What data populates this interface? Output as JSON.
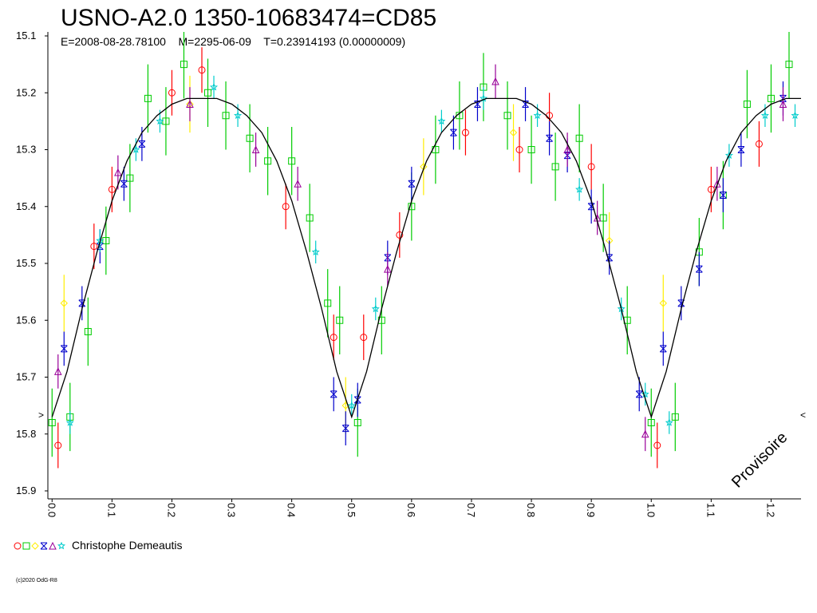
{
  "chart_data": {
    "type": "scatter",
    "title": "USNO-A2.0 1350-10683474=CD85",
    "subtitle": "E=2008-08-28.78100    M=2295-06-09    T=0.23914193 (0.00000009)",
    "annotation": "Provisoire",
    "min_marker_left": ">",
    "min_marker_right": "<",
    "copyright": "(c)2020 OdG-R8",
    "observer": "Christophe Demeautis",
    "xlim": [
      -0.007,
      1.25
    ],
    "ylim": [
      15.1,
      15.9
    ],
    "y_inverted": true,
    "xticks": [
      {
        "value": 0,
        "label": "0.0"
      },
      0.1,
      0.2,
      0.3,
      0.4,
      0.5,
      0.6,
      0.7,
      0.8,
      0.9,
      {
        "value": 1,
        "label": "1.0"
      },
      1.1,
      1.2
    ],
    "yticks": [
      15.1,
      15.2,
      15.3,
      15.4,
      15.5,
      15.6,
      15.7,
      15.8,
      15.9
    ],
    "line": {
      "color": "#000000",
      "x": [
        0,
        0.025,
        0.05,
        0.075,
        0.1,
        0.125,
        0.15,
        0.175,
        0.2,
        0.225,
        0.25,
        0.275,
        0.3,
        0.325,
        0.35,
        0.375,
        0.4,
        0.425,
        0.45,
        0.475,
        0.5,
        0.525,
        0.55,
        0.575,
        0.6,
        0.625,
        0.65,
        0.675,
        0.7,
        0.725,
        0.75,
        0.775,
        0.8,
        0.825,
        0.85,
        0.875,
        0.9,
        0.925,
        0.95,
        0.975,
        1,
        1.025,
        1.05,
        1.075,
        1.1,
        1.125,
        1.15,
        1.175,
        1.2,
        1.225,
        1.25
      ],
      "values": [
        15.77,
        15.69,
        15.58,
        15.48,
        15.39,
        15.32,
        15.27,
        15.24,
        15.22,
        15.21,
        15.21,
        15.21,
        15.22,
        15.24,
        15.27,
        15.32,
        15.39,
        15.48,
        15.58,
        15.69,
        15.77,
        15.69,
        15.58,
        15.48,
        15.39,
        15.32,
        15.27,
        15.24,
        15.22,
        15.21,
        15.21,
        15.21,
        15.22,
        15.24,
        15.27,
        15.32,
        15.39,
        15.48,
        15.58,
        15.69,
        15.77,
        15.69,
        15.58,
        15.48,
        15.39,
        15.32,
        15.27,
        15.24,
        15.22,
        15.21,
        15.21
      ]
    },
    "series": [
      {
        "color": "#ff0000",
        "marker": "circle",
        "error": 0.04,
        "x": [
          0.01,
          0.07,
          0.1,
          0.2,
          0.25,
          0.39,
          0.47,
          0.52,
          0.58,
          0.69,
          0.78,
          0.83,
          0.9,
          1.01,
          1.1,
          1.18
        ],
        "values": [
          15.82,
          15.47,
          15.37,
          15.2,
          15.16,
          15.4,
          15.63,
          15.63,
          15.45,
          15.27,
          15.3,
          15.24,
          15.33,
          15.82,
          15.37,
          15.29
        ]
      },
      {
        "color": "#00cc00",
        "marker": "square",
        "error": 0.06,
        "x": [
          0.0,
          0.03,
          0.06,
          0.09,
          0.13,
          0.16,
          0.19,
          0.22,
          0.26,
          0.29,
          0.33,
          0.36,
          0.4,
          0.43,
          0.46,
          0.48,
          0.51,
          0.55,
          0.6,
          0.64,
          0.68,
          0.72,
          0.76,
          0.8,
          0.84,
          0.88,
          0.92,
          0.96,
          1.0,
          1.04,
          1.08,
          1.12,
          1.16,
          1.2,
          1.23
        ],
        "values": [
          15.78,
          15.77,
          15.62,
          15.46,
          15.35,
          15.21,
          15.25,
          15.15,
          15.2,
          15.24,
          15.28,
          15.32,
          15.32,
          15.42,
          15.57,
          15.6,
          15.78,
          15.6,
          15.4,
          15.3,
          15.24,
          15.19,
          15.24,
          15.3,
          15.33,
          15.28,
          15.42,
          15.6,
          15.78,
          15.77,
          15.48,
          15.38,
          15.22,
          15.21,
          15.15
        ]
      },
      {
        "color": "#ffee00",
        "marker": "diamond",
        "error": 0.05,
        "x": [
          0.02,
          0.23,
          0.49,
          0.62,
          0.77,
          0.93,
          1.02
        ],
        "values": [
          15.57,
          15.22,
          15.75,
          15.33,
          15.27,
          15.46,
          15.57
        ]
      },
      {
        "color": "#0000cc",
        "marker": "xstar",
        "error": 0.03,
        "x": [
          0.02,
          0.05,
          0.08,
          0.12,
          0.15,
          0.47,
          0.49,
          0.51,
          0.56,
          0.6,
          0.67,
          0.71,
          0.79,
          0.83,
          0.86,
          0.9,
          0.93,
          0.98,
          1.02,
          1.05,
          1.08,
          1.12,
          1.15,
          1.22
        ],
        "values": [
          15.65,
          15.57,
          15.47,
          15.36,
          15.29,
          15.73,
          15.79,
          15.74,
          15.49,
          15.36,
          15.27,
          15.22,
          15.22,
          15.28,
          15.31,
          15.4,
          15.49,
          15.73,
          15.65,
          15.57,
          15.51,
          15.38,
          15.3,
          15.21
        ]
      },
      {
        "color": "#990099",
        "marker": "triangle",
        "error": 0.03,
        "x": [
          0.01,
          0.11,
          0.23,
          0.34,
          0.41,
          0.56,
          0.74,
          0.86,
          0.91,
          0.99,
          1.11,
          1.22
        ],
        "values": [
          15.69,
          15.34,
          15.22,
          15.3,
          15.36,
          15.51,
          15.18,
          15.3,
          15.42,
          15.8,
          15.36,
          15.22
        ]
      },
      {
        "color": "#00cccc",
        "marker": "star",
        "error": 0.02,
        "x": [
          0.03,
          0.08,
          0.14,
          0.18,
          0.27,
          0.31,
          0.44,
          0.5,
          0.54,
          0.65,
          0.72,
          0.81,
          0.88,
          0.95,
          0.99,
          1.03,
          1.13,
          1.19,
          1.24
        ],
        "values": [
          15.78,
          15.46,
          15.3,
          15.25,
          15.19,
          15.24,
          15.48,
          15.75,
          15.58,
          15.25,
          15.21,
          15.24,
          15.37,
          15.58,
          15.73,
          15.78,
          15.31,
          15.24,
          15.24
        ]
      }
    ]
  }
}
